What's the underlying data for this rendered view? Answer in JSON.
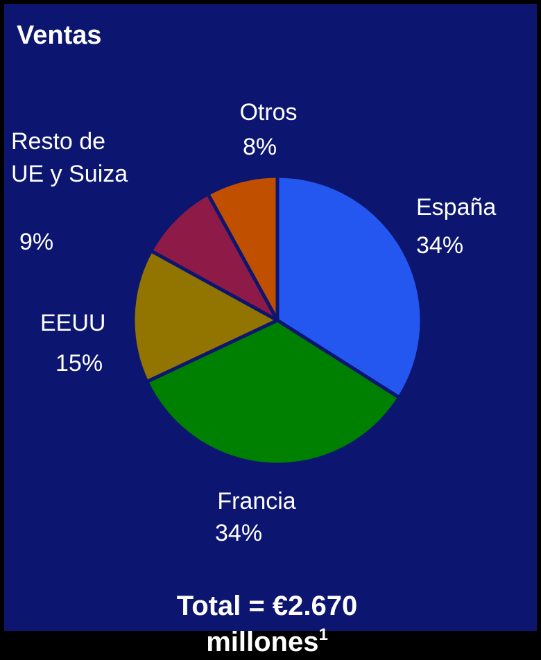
{
  "chart_data": {
    "type": "pie",
    "title": "Ventas",
    "categories": [
      "España",
      "Francia",
      "EEUU",
      "Resto de UE y Suiza",
      "Otros"
    ],
    "values": [
      34,
      34,
      15,
      9,
      8
    ],
    "value_labels": [
      "34%",
      "34%",
      "15%",
      "9%",
      "8%"
    ],
    "colors": [
      "#2457f0",
      "#008000",
      "#927400",
      "#8e1a48",
      "#c05000"
    ],
    "total": "Total = €2.670 millones",
    "footnote_marker": "1"
  }
}
